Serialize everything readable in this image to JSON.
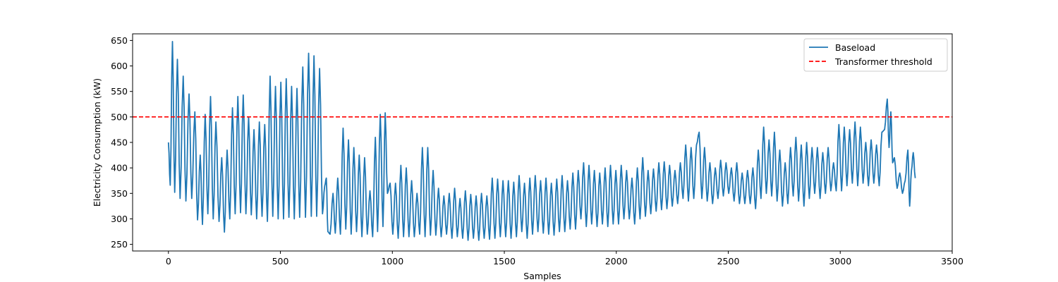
{
  "chart_data": {
    "type": "line",
    "title": "",
    "xlabel": "Samples",
    "ylabel": "Electricity Consumption (kW)",
    "xlim": [
      -160,
      3500
    ],
    "ylim": [
      237,
      663
    ],
    "xticks": [
      0,
      500,
      1000,
      1500,
      2000,
      2500,
      3000,
      3500
    ],
    "yticks": [
      250,
      300,
      350,
      400,
      450,
      500,
      550,
      600,
      650
    ],
    "grid": false,
    "legend_position": "top-right",
    "series": [
      {
        "name": "Baseload",
        "color": "#1f77b4",
        "style": "solid",
        "n_samples": 3340,
        "keypoints": [
          [
            0,
            450
          ],
          [
            8,
            366
          ],
          [
            18,
            648
          ],
          [
            28,
            352
          ],
          [
            40,
            613
          ],
          [
            52,
            340
          ],
          [
            66,
            580
          ],
          [
            78,
            335
          ],
          [
            92,
            545
          ],
          [
            104,
            340
          ],
          [
            118,
            510
          ],
          [
            130,
            298
          ],
          [
            142,
            425
          ],
          [
            152,
            289
          ],
          [
            164,
            505
          ],
          [
            176,
            310
          ],
          [
            188,
            540
          ],
          [
            200,
            300
          ],
          [
            212,
            490
          ],
          [
            226,
            295
          ],
          [
            238,
            420
          ],
          [
            250,
            274
          ],
          [
            262,
            435
          ],
          [
            274,
            300
          ],
          [
            286,
            518
          ],
          [
            298,
            310
          ],
          [
            310,
            540
          ],
          [
            322,
            312
          ],
          [
            334,
            543
          ],
          [
            346,
            310
          ],
          [
            358,
            500
          ],
          [
            370,
            308
          ],
          [
            382,
            475
          ],
          [
            394,
            300
          ],
          [
            406,
            490
          ],
          [
            418,
            305
          ],
          [
            430,
            485
          ],
          [
            442,
            295
          ],
          [
            454,
            580
          ],
          [
            466,
            305
          ],
          [
            478,
            560
          ],
          [
            490,
            300
          ],
          [
            502,
            568
          ],
          [
            514,
            300
          ],
          [
            526,
            575
          ],
          [
            538,
            303
          ],
          [
            550,
            560
          ],
          [
            562,
            300
          ],
          [
            574,
            556
          ],
          [
            586,
            303
          ],
          [
            600,
            598
          ],
          [
            612,
            303
          ],
          [
            626,
            625
          ],
          [
            638,
            305
          ],
          [
            650,
            620
          ],
          [
            662,
            305
          ],
          [
            675,
            595
          ],
          [
            688,
            310
          ],
          [
            698,
            365
          ],
          [
            705,
            380
          ],
          [
            712,
            275
          ],
          [
            722,
            270
          ],
          [
            735,
            350
          ],
          [
            745,
            272
          ],
          [
            756,
            380
          ],
          [
            768,
            270
          ],
          [
            780,
            478
          ],
          [
            792,
            280
          ],
          [
            804,
            455
          ],
          [
            816,
            270
          ],
          [
            828,
            440
          ],
          [
            840,
            275
          ],
          [
            852,
            425
          ],
          [
            864,
            265
          ],
          [
            876,
            420
          ],
          [
            888,
            270
          ],
          [
            900,
            355
          ],
          [
            912,
            265
          ],
          [
            924,
            460
          ],
          [
            934,
            275
          ],
          [
            946,
            505
          ],
          [
            958,
            285
          ],
          [
            968,
            508
          ],
          [
            978,
            350
          ],
          [
            990,
            370
          ],
          [
            1002,
            270
          ],
          [
            1014,
            370
          ],
          [
            1026,
            262
          ],
          [
            1038,
            405
          ],
          [
            1050,
            265
          ],
          [
            1062,
            400
          ],
          [
            1074,
            265
          ],
          [
            1086,
            375
          ],
          [
            1098,
            265
          ],
          [
            1110,
            350
          ],
          [
            1122,
            270
          ],
          [
            1134,
            440
          ],
          [
            1146,
            265
          ],
          [
            1158,
            440
          ],
          [
            1170,
            268
          ],
          [
            1182,
            395
          ],
          [
            1194,
            268
          ],
          [
            1206,
            360
          ],
          [
            1218,
            265
          ],
          [
            1230,
            345
          ],
          [
            1242,
            270
          ],
          [
            1254,
            350
          ],
          [
            1266,
            262
          ],
          [
            1278,
            360
          ],
          [
            1290,
            265
          ],
          [
            1302,
            340
          ],
          [
            1314,
            262
          ],
          [
            1326,
            355
          ],
          [
            1338,
            258
          ],
          [
            1350,
            348
          ],
          [
            1362,
            262
          ],
          [
            1374,
            345
          ],
          [
            1386,
            258
          ],
          [
            1398,
            350
          ],
          [
            1410,
            262
          ],
          [
            1422,
            345
          ],
          [
            1434,
            260
          ],
          [
            1446,
            380
          ],
          [
            1458,
            262
          ],
          [
            1470,
            378
          ],
          [
            1482,
            265
          ],
          [
            1494,
            375
          ],
          [
            1506,
            265
          ],
          [
            1518,
            375
          ],
          [
            1530,
            262
          ],
          [
            1542,
            372
          ],
          [
            1554,
            265
          ],
          [
            1566,
            385
          ],
          [
            1578,
            275
          ],
          [
            1590,
            370
          ],
          [
            1602,
            262
          ],
          [
            1614,
            380
          ],
          [
            1626,
            270
          ],
          [
            1638,
            385
          ],
          [
            1650,
            275
          ],
          [
            1662,
            375
          ],
          [
            1674,
            272
          ],
          [
            1686,
            380
          ],
          [
            1698,
            270
          ],
          [
            1710,
            370
          ],
          [
            1722,
            268
          ],
          [
            1734,
            378
          ],
          [
            1746,
            275
          ],
          [
            1758,
            385
          ],
          [
            1770,
            275
          ],
          [
            1782,
            375
          ],
          [
            1794,
            280
          ],
          [
            1806,
            390
          ],
          [
            1818,
            280
          ],
          [
            1830,
            395
          ],
          [
            1842,
            300
          ],
          [
            1854,
            410
          ],
          [
            1866,
            285
          ],
          [
            1878,
            405
          ],
          [
            1890,
            290
          ],
          [
            1902,
            395
          ],
          [
            1914,
            285
          ],
          [
            1926,
            390
          ],
          [
            1938,
            290
          ],
          [
            1950,
            400
          ],
          [
            1962,
            285
          ],
          [
            1974,
            405
          ],
          [
            1986,
            290
          ],
          [
            1998,
            395
          ],
          [
            2010,
            290
          ],
          [
            2022,
            405
          ],
          [
            2034,
            300
          ],
          [
            2046,
            395
          ],
          [
            2058,
            300
          ],
          [
            2070,
            380
          ],
          [
            2082,
            290
          ],
          [
            2094,
            400
          ],
          [
            2106,
            300
          ],
          [
            2118,
            420
          ],
          [
            2130,
            305
          ],
          [
            2142,
            395
          ],
          [
            2154,
            310
          ],
          [
            2166,
            398
          ],
          [
            2178,
            315
          ],
          [
            2190,
            410
          ],
          [
            2202,
            318
          ],
          [
            2214,
            412
          ],
          [
            2226,
            320
          ],
          [
            2238,
            405
          ],
          [
            2250,
            325
          ],
          [
            2262,
            395
          ],
          [
            2274,
            330
          ],
          [
            2286,
            410
          ],
          [
            2298,
            340
          ],
          [
            2310,
            445
          ],
          [
            2322,
            335
          ],
          [
            2334,
            440
          ],
          [
            2346,
            340
          ],
          [
            2358,
            445
          ],
          [
            2370,
            470
          ],
          [
            2382,
            340
          ],
          [
            2394,
            440
          ],
          [
            2406,
            335
          ],
          [
            2418,
            410
          ],
          [
            2430,
            330
          ],
          [
            2442,
            400
          ],
          [
            2454,
            340
          ],
          [
            2466,
            415
          ],
          [
            2478,
            345
          ],
          [
            2490,
            410
          ],
          [
            2502,
            350
          ],
          [
            2514,
            400
          ],
          [
            2526,
            335
          ],
          [
            2538,
            410
          ],
          [
            2550,
            330
          ],
          [
            2562,
            390
          ],
          [
            2574,
            330
          ],
          [
            2586,
            395
          ],
          [
            2598,
            330
          ],
          [
            2610,
            400
          ],
          [
            2622,
            320
          ],
          [
            2634,
            435
          ],
          [
            2646,
            340
          ],
          [
            2658,
            480
          ],
          [
            2670,
            350
          ],
          [
            2682,
            455
          ],
          [
            2694,
            345
          ],
          [
            2706,
            470
          ],
          [
            2718,
            335
          ],
          [
            2730,
            435
          ],
          [
            2742,
            325
          ],
          [
            2754,
            410
          ],
          [
            2766,
            330
          ],
          [
            2778,
            440
          ],
          [
            2790,
            345
          ],
          [
            2802,
            460
          ],
          [
            2814,
            335
          ],
          [
            2826,
            445
          ],
          [
            2838,
            325
          ],
          [
            2850,
            450
          ],
          [
            2862,
            340
          ],
          [
            2874,
            440
          ],
          [
            2886,
            350
          ],
          [
            2898,
            440
          ],
          [
            2910,
            340
          ],
          [
            2922,
            430
          ],
          [
            2934,
            350
          ],
          [
            2946,
            440
          ],
          [
            2958,
            355
          ],
          [
            2970,
            410
          ],
          [
            2982,
            355
          ],
          [
            2994,
            485
          ],
          [
            3006,
            355
          ],
          [
            3018,
            480
          ],
          [
            3030,
            365
          ],
          [
            3042,
            475
          ],
          [
            3054,
            370
          ],
          [
            3066,
            490
          ],
          [
            3078,
            365
          ],
          [
            3090,
            480
          ],
          [
            3102,
            370
          ],
          [
            3114,
            450
          ],
          [
            3126,
            365
          ],
          [
            3138,
            455
          ],
          [
            3150,
            370
          ],
          [
            3162,
            445
          ],
          [
            3174,
            365
          ],
          [
            3186,
            470
          ],
          [
            3198,
            475
          ],
          [
            3210,
            535
          ],
          [
            3218,
            440
          ],
          [
            3226,
            510
          ],
          [
            3234,
            410
          ],
          [
            3242,
            420
          ],
          [
            3254,
            360
          ],
          [
            3266,
            390
          ],
          [
            3278,
            350
          ],
          [
            3290,
            375
          ],
          [
            3302,
            435
          ],
          [
            3310,
            325
          ],
          [
            3318,
            395
          ],
          [
            3326,
            430
          ],
          [
            3335,
            380
          ]
        ]
      },
      {
        "name": "Transformer threshold",
        "color": "#ff0000",
        "style": "dashed",
        "y": 500
      }
    ]
  }
}
